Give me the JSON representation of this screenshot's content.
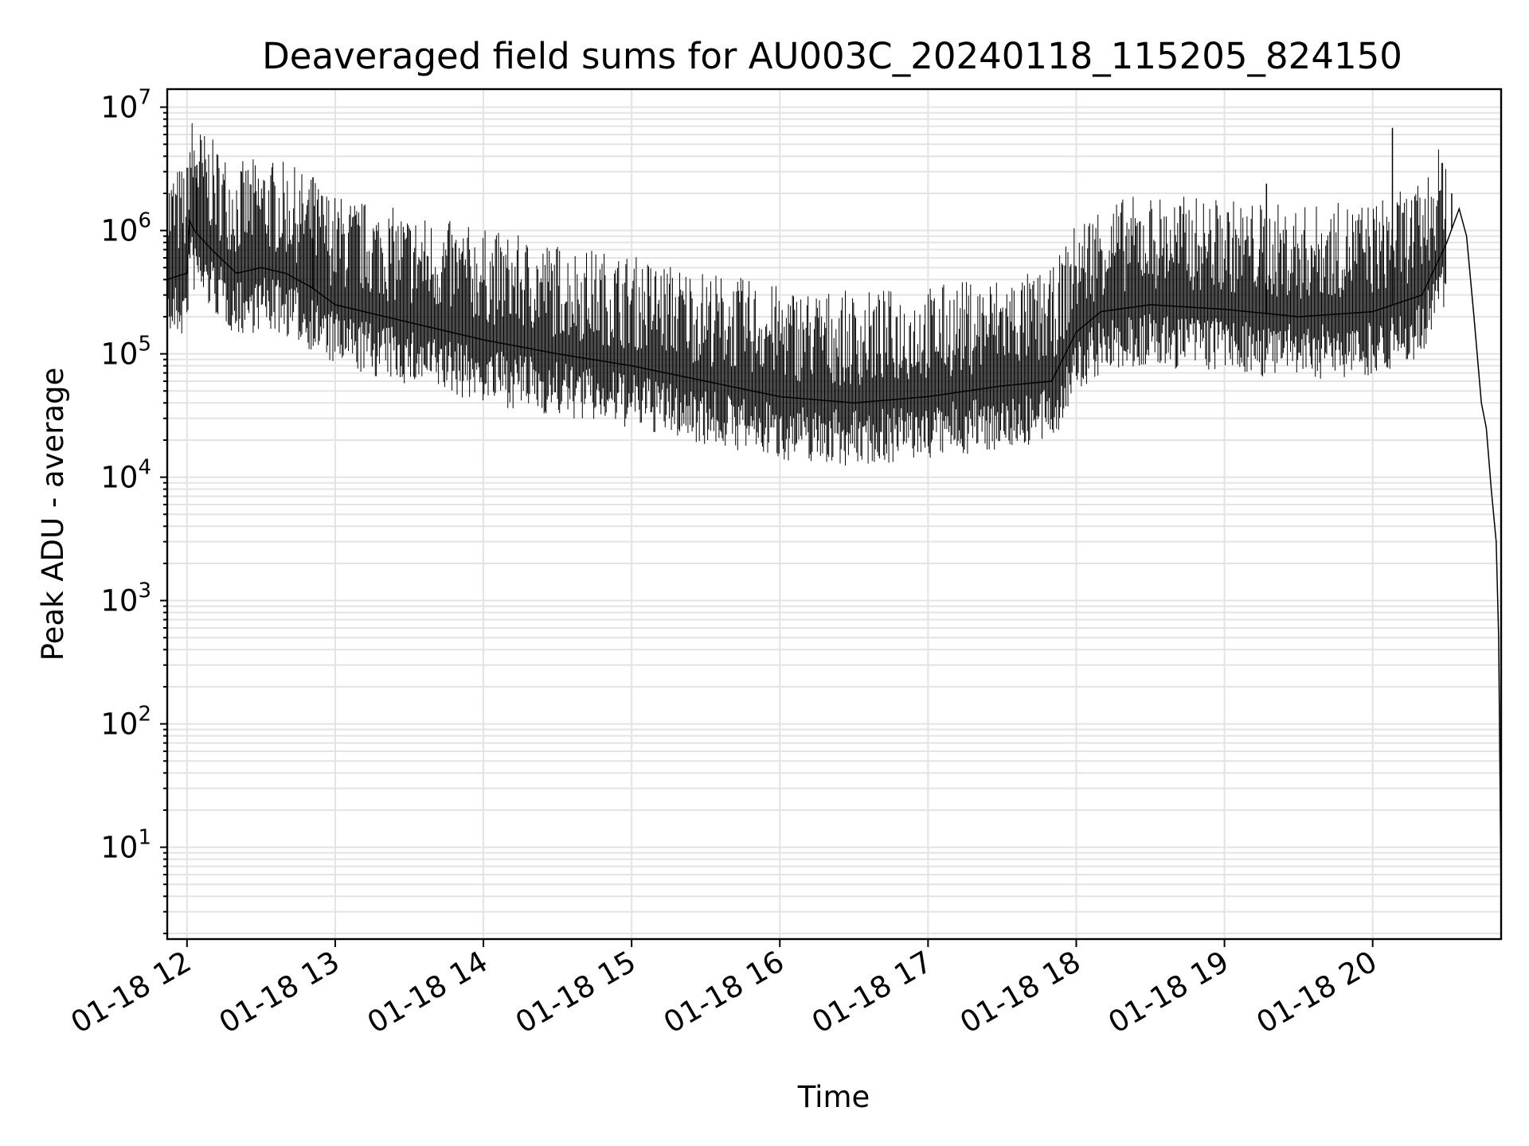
{
  "chart_data": {
    "type": "line",
    "title": "Deaveraged field sums for AU003C_20240118_115205_824150",
    "xlabel": "Time",
    "ylabel": "Peak ADU - average",
    "y_scale": "log",
    "ylim": [
      1.8,
      14000000
    ],
    "xlim": [
      "2024-01-18 11:52",
      "2024-01-18 20:52"
    ],
    "x_ticks": [
      "01-18 12",
      "01-18 13",
      "01-18 14",
      "01-18 15",
      "01-18 16",
      "01-18 17",
      "01-18 18",
      "01-18 19",
      "01-18 20"
    ],
    "y_ticks": [
      {
        "value": 10,
        "base": "10",
        "exp": "1"
      },
      {
        "value": 100,
        "base": "10",
        "exp": "2"
      },
      {
        "value": 1000,
        "base": "10",
        "exp": "3"
      },
      {
        "value": 10000,
        "base": "10",
        "exp": "4"
      },
      {
        "value": 100000,
        "base": "10",
        "exp": "5"
      },
      {
        "value": 1000000,
        "base": "10",
        "exp": "6"
      },
      {
        "value": 10000000,
        "base": "10",
        "exp": "7"
      }
    ],
    "grid": true,
    "line_color": "#000000",
    "series": [
      {
        "x": [
          "2024-01-18 11:52",
          "2024-01-18 11:55",
          "2024-01-18 12:00",
          "2024-01-18 12:01",
          "2024-01-18 12:03",
          "2024-01-18 12:05",
          "2024-01-18 12:10",
          "2024-01-18 12:20",
          "2024-01-18 12:30",
          "2024-01-18 12:40",
          "2024-01-18 12:50",
          "2024-01-18 13:00",
          "2024-01-18 13:30",
          "2024-01-18 14:00",
          "2024-01-18 14:30",
          "2024-01-18 15:00",
          "2024-01-18 15:30",
          "2024-01-18 16:00",
          "2024-01-18 16:30",
          "2024-01-18 17:00",
          "2024-01-18 17:30",
          "2024-01-18 17:50",
          "2024-01-18 18:00",
          "2024-01-18 18:10",
          "2024-01-18 18:30",
          "2024-01-18 19:00",
          "2024-01-18 19:30",
          "2024-01-18 20:00",
          "2024-01-18 20:20",
          "2024-01-18 20:30",
          "2024-01-18 20:35",
          "2024-01-18 20:38",
          "2024-01-18 20:41",
          "2024-01-18 20:44",
          "2024-01-18 20:46",
          "2024-01-18 20:48",
          "2024-01-18 20:50",
          "2024-01-18 20:51",
          "2024-01-18 20:52"
        ],
        "y": [
          400000,
          420000,
          450000,
          1200000,
          1000000,
          900000,
          700000,
          450000,
          500000,
          450000,
          350000,
          250000,
          180000,
          130000,
          100000,
          80000,
          60000,
          45000,
          40000,
          45000,
          55000,
          60000,
          150000,
          220000,
          250000,
          230000,
          200000,
          220000,
          300000,
          800000,
          1500000,
          900000,
          200000,
          40000,
          25000,
          8000,
          3000,
          500,
          4
        ]
      }
    ],
    "peaks": [
      {
        "x": "2024-01-18 12:04",
        "y": 3400000
      },
      {
        "x": "2024-01-18 12:51",
        "y": 2700000
      },
      {
        "x": "2024-01-18 19:17",
        "y": 2400000
      },
      {
        "x": "2024-01-18 20:08",
        "y": 6800000
      },
      {
        "x": "2024-01-18 20:32",
        "y": 2000000
      }
    ]
  }
}
